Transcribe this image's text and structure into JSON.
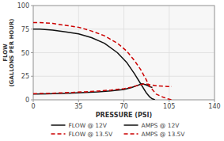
{
  "chart_data": {
    "type": "line",
    "xlabel": "PRESSURE (PSI)",
    "ylabel": "FLOW\n(GALLONS PER HOUR)",
    "xlim": [
      0,
      140
    ],
    "ylim": [
      0,
      100
    ],
    "xticks": [
      0,
      35,
      70,
      105,
      140
    ],
    "yticks": [
      0,
      25,
      50,
      75,
      100
    ],
    "grid": true,
    "legend": "bottom",
    "series": [
      {
        "name": "FLOW @ 12V",
        "color": "#111111",
        "line_style": "solid",
        "x": [
          0,
          5,
          15,
          25,
          35,
          45,
          55,
          65,
          72,
          78,
          83,
          87,
          90,
          92,
          94
        ],
        "values": [
          75,
          75,
          74,
          72,
          70,
          66,
          60,
          50,
          40,
          28,
          17,
          8,
          3,
          1,
          0
        ]
      },
      {
        "name": "AMPS @ 12V",
        "color": "#111111",
        "line_style": "solid",
        "x": [
          0,
          10,
          20,
          30,
          40,
          50,
          60,
          70,
          76,
          80,
          84,
          87,
          90,
          92
        ],
        "values": [
          6,
          6.3,
          6.7,
          7.2,
          7.8,
          8.5,
          9.5,
          11,
          13,
          15,
          17,
          16,
          14,
          13
        ]
      },
      {
        "name": "FLOW @ 13.5V",
        "color": "#cc0000",
        "line_style": "dashed",
        "x": [
          0,
          5,
          15,
          25,
          35,
          45,
          55,
          65,
          72,
          78,
          83,
          87,
          90,
          95,
          100,
          104,
          107
        ],
        "values": [
          82,
          82,
          81,
          79,
          77,
          73,
          68,
          60,
          52,
          42,
          32,
          22,
          14,
          6,
          3,
          1,
          0
        ]
      },
      {
        "name": "AMPS @ 13.5V",
        "color": "#cc0000",
        "line_style": "dashed",
        "x": [
          0,
          10,
          20,
          30,
          40,
          50,
          60,
          70,
          76,
          80,
          84,
          87,
          90,
          95,
          100,
          104,
          107
        ],
        "values": [
          6.5,
          6.8,
          7.3,
          7.8,
          8.5,
          9.3,
          10.3,
          11.8,
          13.5,
          15,
          16.5,
          17,
          16,
          15,
          14.5,
          14,
          14
        ]
      }
    ]
  }
}
